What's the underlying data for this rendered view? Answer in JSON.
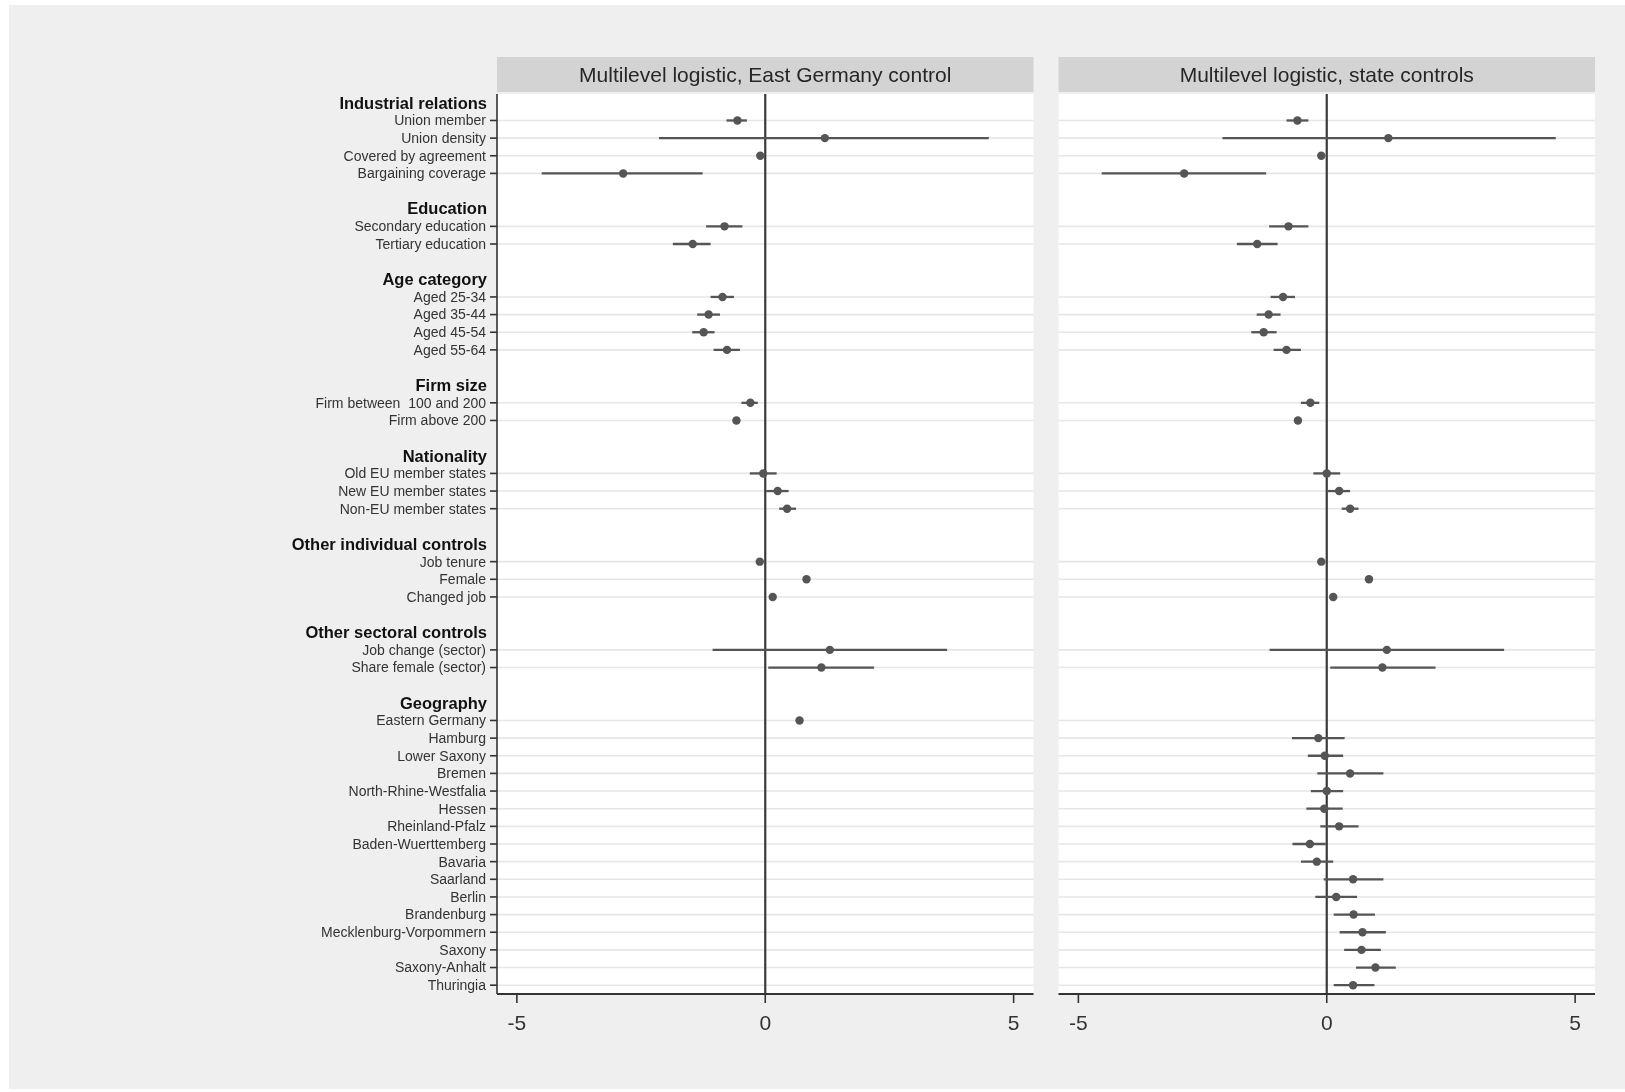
{
  "chart_data": [
    {
      "type": "scatter",
      "orientation": "horizontal",
      "title": "Multilevel logistic, East Germany control",
      "categories": [
        "Industrial relations",
        "Union member",
        "Union density",
        "Covered by agreement",
        "Bargaining coverage",
        null,
        "Education",
        "Secondary education",
        "Tertiary education",
        null,
        "Age category",
        "Aged 25-34",
        "Aged 35-44",
        "Aged 45-54",
        "Aged 55-64",
        null,
        "Firm size",
        "Firm between  100 and 200",
        "Firm above 200",
        null,
        "Nationality",
        "Old EU member states",
        "New EU member states",
        "Non-EU member states",
        null,
        "Other individual controls",
        "Job tenure",
        "Female",
        "Changed job",
        null,
        "Other sectoral controls",
        "Job change (sector)",
        "Share female (sector)",
        null,
        "Geography",
        "Eastern Germany",
        "Hamburg",
        "Lower Saxony",
        "Bremen",
        "North-Rhine-Westfalia",
        "Hessen",
        "Rheinland-Pfalz",
        "Baden-Wuerttemberg",
        "Bavaria",
        "Saarland",
        "Berlin",
        "Brandenburg",
        "Mecklenburg-Vorpommern",
        "Saxony",
        "Saxony-Anhalt",
        "Thuringia"
      ],
      "values": [
        null,
        -0.56,
        1.2,
        -0.1,
        -2.86,
        null,
        null,
        -0.82,
        -1.46,
        null,
        null,
        -0.86,
        -1.14,
        -1.24,
        -0.77,
        null,
        null,
        -0.3,
        -0.58,
        null,
        null,
        -0.04,
        0.25,
        0.44,
        null,
        null,
        -0.11,
        0.83,
        0.15,
        null,
        null,
        1.3,
        1.13,
        null,
        null,
        0.69,
        null,
        null,
        null,
        null,
        null,
        null,
        null,
        null,
        null,
        null,
        null,
        null,
        null,
        null,
        null
      ],
      "errors": [
        null,
        [
          -0.78,
          -0.37
        ],
        [
          -2.14,
          4.5
        ],
        null,
        [
          -4.5,
          -1.26
        ],
        null,
        null,
        [
          -1.19,
          -0.46
        ],
        [
          -1.86,
          -1.1
        ],
        null,
        null,
        [
          -1.1,
          -0.63
        ],
        [
          -1.37,
          -0.91
        ],
        [
          -1.47,
          -1.02
        ],
        [
          -1.04,
          -0.51
        ],
        null,
        null,
        [
          -0.48,
          -0.15
        ],
        null,
        null,
        null,
        [
          -0.31,
          0.23
        ],
        [
          0.02,
          0.47
        ],
        [
          0.28,
          0.62
        ],
        null,
        null,
        null,
        null,
        null,
        null,
        null,
        [
          -1.06,
          3.66
        ],
        [
          0.06,
          2.19
        ],
        null,
        null,
        null,
        null,
        null,
        null,
        null,
        null,
        null,
        null,
        null,
        null,
        null,
        null,
        null,
        null,
        null,
        null
      ],
      "color": "#555555",
      "marker": "circle",
      "xlim": [
        -5.4,
        5.4
      ],
      "xticks": [
        -5,
        0,
        5
      ],
      "grid": "y",
      "ref_lines": [
        {
          "axis": "x",
          "value": 0,
          "color": "#3a3a3a"
        }
      ]
    },
    {
      "type": "scatter",
      "orientation": "horizontal",
      "title": "Multilevel logistic, state controls",
      "categories": [
        "Industrial relations",
        "Union member",
        "Union density",
        "Covered by agreement",
        "Bargaining coverage",
        null,
        "Education",
        "Secondary education",
        "Tertiary education",
        null,
        "Age category",
        "Aged 25-34",
        "Aged 35-44",
        "Aged 45-54",
        "Aged 55-64",
        null,
        "Firm size",
        "Firm between  100 and 200",
        "Firm above 200",
        null,
        "Nationality",
        "Old EU member states",
        "New EU member states",
        "Non-EU member states",
        null,
        "Other individual controls",
        "Job tenure",
        "Female",
        "Changed job",
        null,
        "Other sectoral controls",
        "Job change (sector)",
        "Share female (sector)",
        null,
        "Geography",
        "Eastern Germany",
        "Hamburg",
        "Lower Saxony",
        "Bremen",
        "North-Rhine-Westfalia",
        "Hessen",
        "Rheinland-Pfalz",
        "Baden-Wuerttemberg",
        "Bavaria",
        "Saarland",
        "Berlin",
        "Brandenburg",
        "Mecklenburg-Vorpommern",
        "Saxony",
        "Saxony-Anhalt",
        "Thuringia"
      ],
      "values": [
        null,
        -0.59,
        1.24,
        -0.11,
        -2.87,
        null,
        null,
        -0.77,
        -1.4,
        null,
        null,
        -0.88,
        -1.17,
        -1.27,
        -0.81,
        null,
        null,
        -0.33,
        -0.58,
        null,
        null,
        0,
        0.25,
        0.47,
        null,
        null,
        -0.11,
        0.85,
        0.13,
        null,
        null,
        1.21,
        1.12,
        null,
        null,
        null,
        -0.17,
        -0.04,
        0.47,
        0,
        -0.05,
        0.25,
        -0.34,
        -0.2,
        0.53,
        0.19,
        0.54,
        0.72,
        0.7,
        0.98,
        0.53
      ],
      "errors": [
        null,
        [
          -0.81,
          -0.37
        ],
        [
          -2.1,
          4.61
        ],
        null,
        [
          -4.53,
          -1.22
        ],
        null,
        null,
        [
          -1.16,
          -0.37
        ],
        [
          -1.81,
          -0.99
        ],
        null,
        null,
        [
          -1.13,
          -0.64
        ],
        [
          -1.41,
          -0.93
        ],
        [
          -1.52,
          -1.01
        ],
        [
          -1.07,
          -0.52
        ],
        null,
        null,
        [
          -0.52,
          -0.15
        ],
        null,
        null,
        null,
        [
          -0.27,
          0.27
        ],
        [
          0.01,
          0.47
        ],
        [
          0.3,
          0.64
        ],
        null,
        null,
        null,
        null,
        null,
        null,
        null,
        [
          -1.15,
          3.57
        ],
        [
          0.07,
          2.19
        ],
        null,
        null,
        null,
        [
          -0.7,
          0.36
        ],
        [
          -0.38,
          0.33
        ],
        [
          -0.19,
          1.14
        ],
        [
          -0.32,
          0.33
        ],
        [
          -0.41,
          0.32
        ],
        [
          -0.13,
          0.64
        ],
        [
          -0.69,
          -0.02
        ],
        [
          -0.52,
          0.13
        ],
        [
          -0.06,
          1.14
        ],
        [
          -0.23,
          0.61
        ],
        [
          0.14,
          0.97
        ],
        [
          0.26,
          1.19
        ],
        [
          0.35,
          1.09
        ],
        [
          0.59,
          1.39
        ],
        [
          0.14,
          0.96
        ]
      ],
      "color": "#555555",
      "marker": "circle",
      "xlim": [
        -5.4,
        5.4
      ],
      "xticks": [
        -5,
        0,
        5
      ],
      "grid": "y",
      "tick_labels": "x",
      "ref_lines": [
        {
          "axis": "x",
          "value": 0,
          "color": "#3a3a3a"
        }
      ]
    }
  ]
}
